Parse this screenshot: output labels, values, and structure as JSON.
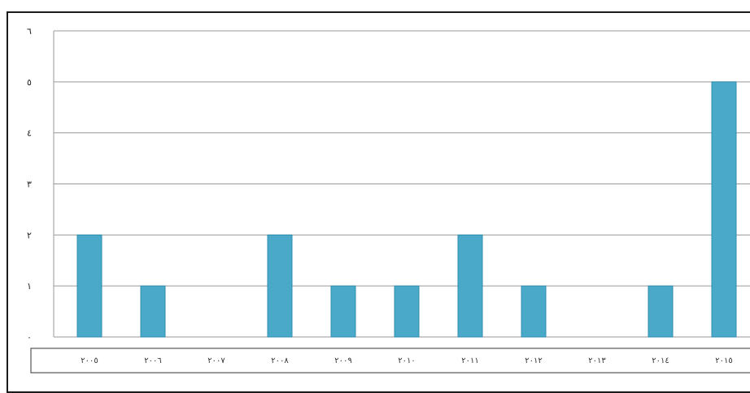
{
  "chart_data": {
    "type": "bar",
    "title": "",
    "xlabel": "",
    "ylabel": "",
    "categories": [
      "٢٠٠٥",
      "٢٠٠٦",
      "٢٠٠٧",
      "٢٠٠٨",
      "٢٠٠٩",
      "٢٠١٠",
      "٢٠١١",
      "٢٠١٢",
      "٢٠١٣",
      "٢٠١٤",
      "٢٠١٥"
    ],
    "values": [
      2,
      1,
      0,
      2,
      1,
      1,
      2,
      1,
      0,
      1,
      5
    ],
    "ylim": [
      0,
      6
    ],
    "yticks": [
      "٠",
      "١",
      "٢",
      "٣",
      "٤",
      "٥",
      "٦"
    ],
    "grid": true,
    "legend": "none",
    "colors": {
      "bar": "#4aa9c9",
      "bar_edge": "#2f8fb0",
      "grid": "#9a9a9a",
      "frame": "#1a1a1a"
    }
  }
}
